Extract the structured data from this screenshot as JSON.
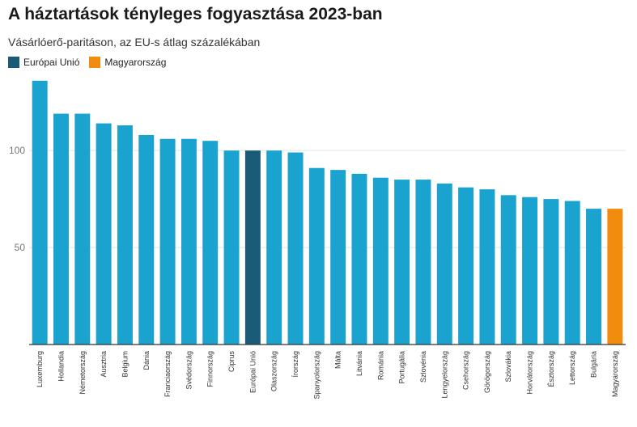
{
  "header": {
    "title": "A háztartások tényleges fogyasztása 2023-ban",
    "subtitle": "Vásárlóerő-paritáson, az EU-s átlag százalékában"
  },
  "legend": [
    {
      "label": "Európai Unió",
      "color": "#1a5c77"
    },
    {
      "label": "Magyarország",
      "color": "#f28c0f"
    }
  ],
  "colors": {
    "default": "#1ba3cf",
    "eu": "#1a5c77",
    "hungary": "#f28c0f",
    "grid": "#e3e3e3",
    "axis": "#333333"
  },
  "chart_data": {
    "type": "bar",
    "title": "A háztartások tényleges fogyasztása 2023-ban",
    "subtitle": "Vásárlóerő-paritáson, az EU-s átlag százalékában",
    "xlabel": "",
    "ylabel": "",
    "ylim": [
      0,
      138
    ],
    "yticks": [
      50,
      100
    ],
    "grid": true,
    "legend_position": "top-left",
    "categories": [
      "Luxemburg",
      "Hollandia",
      "Németország",
      "Ausztria",
      "Belgium",
      "Dánia",
      "Franciaország",
      "Svédország",
      "Finnország",
      "Ciprus",
      "Európai Unió",
      "Olaszország",
      "Írország",
      "Spanyolország",
      "Málta",
      "Litvánia",
      "Románia",
      "Portugália",
      "Szlovénia",
      "Lengyelország",
      "Csehország",
      "Görögország",
      "Szlovákia",
      "Horvátország",
      "Észtország",
      "Lettország",
      "Bulgária",
      "Magyarország"
    ],
    "values": [
      136,
      119,
      119,
      114,
      113,
      108,
      106,
      106,
      105,
      100,
      100,
      100,
      99,
      91,
      90,
      88,
      86,
      85,
      85,
      83,
      81,
      80,
      77,
      76,
      75,
      74,
      70,
      70
    ],
    "highlight": {
      "Európai Unió": "eu",
      "Magyarország": "hungary"
    }
  }
}
